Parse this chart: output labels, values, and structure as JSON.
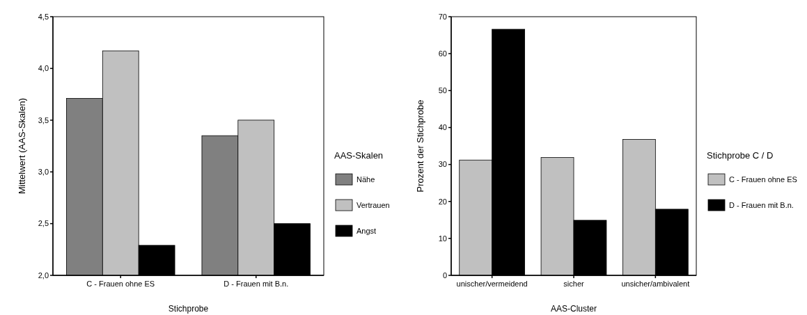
{
  "chart_data": [
    {
      "type": "bar",
      "xlabel": "Stichprobe",
      "ylabel": "Mittelwert (AAS-Skalen)",
      "legend_title": "AAS-Skalen",
      "legend": "right",
      "categories": [
        "C - Frauen ohne ES",
        "D - Frauen mit B.n."
      ],
      "series": [
        {
          "name": "Nähe",
          "color": "#808080",
          "values": [
            3.71,
            3.35
          ]
        },
        {
          "name": "Vertrauen",
          "color": "#c0c0c0",
          "values": [
            4.17,
            3.5
          ]
        },
        {
          "name": "Angst",
          "color": "#000000",
          "values": [
            2.29,
            2.5
          ]
        }
      ],
      "ylim": [
        2,
        4.5
      ],
      "yticks": [
        {
          "value": 2,
          "label": "2,0"
        },
        {
          "value": 2.5,
          "label": "2,5"
        },
        {
          "value": 3,
          "label": "3,0"
        },
        {
          "value": 3.5,
          "label": "3,5"
        },
        {
          "value": 4,
          "label": "4,0"
        },
        {
          "value": 4.5,
          "label": "4,5"
        }
      ]
    },
    {
      "type": "bar",
      "xlabel": "AAS-Cluster",
      "ylabel": "Prozent der Stichprobe",
      "legend_title": "Stichprobe C / D",
      "legend": "right",
      "categories": [
        "unischer/vermeidend",
        "sicher",
        "unsicher/ambivalent"
      ],
      "series": [
        {
          "name": "C - Frauen ohne ES",
          "color": "#c0c0c0",
          "values": [
            31.2,
            31.9,
            36.8
          ]
        },
        {
          "name": "D - Frauen mit B.n.",
          "color": "#000000",
          "values": [
            66.6,
            14.9,
            17.9
          ]
        }
      ],
      "ylim": [
        0,
        70
      ],
      "yticks": [
        0,
        10,
        20,
        30,
        40,
        50,
        60,
        70
      ]
    }
  ]
}
